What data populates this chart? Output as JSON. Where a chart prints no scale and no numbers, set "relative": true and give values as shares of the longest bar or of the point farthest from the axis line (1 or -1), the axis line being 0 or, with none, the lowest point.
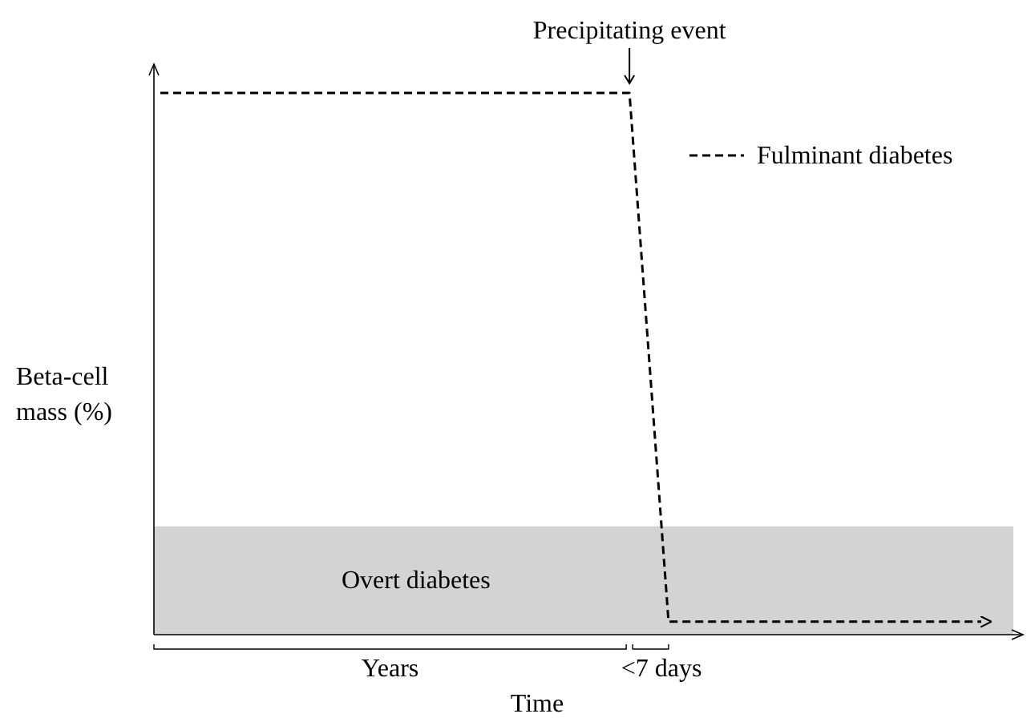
{
  "chart_data": {
    "type": "line",
    "relative": true,
    "ylabel": "Beta-cell mass (%)",
    "xlabel": "Time",
    "categories": [
      null,
      null,
      null,
      null,
      null,
      null,
      null,
      null,
      null,
      null,
      null,
      null,
      null,
      null,
      null,
      null,
      null,
      null,
      null,
      null,
      null,
      null
    ],
    "series": [
      {
        "name": "Fulminant diabetes",
        "color": "#000000",
        "values": [
          1,
          1,
          1,
          1,
          1,
          1,
          1,
          1,
          1,
          1,
          1,
          1,
          1,
          0.024,
          0.024,
          0.024,
          0.024,
          0.024,
          0.024,
          0.024,
          0.024,
          0.024
        ]
      }
    ],
    "line_style": "dashed",
    "legend": "top right",
    "bands": [
      {
        "axis": "y",
        "from": 0,
        "to": 0.2,
        "label": "Overt diabetes",
        "color": "#d3d3d3"
      }
    ],
    "annotations": [
      {
        "text": "Precipitating event",
        "y": 1
      },
      "Years",
      "<7 days"
    ]
  }
}
